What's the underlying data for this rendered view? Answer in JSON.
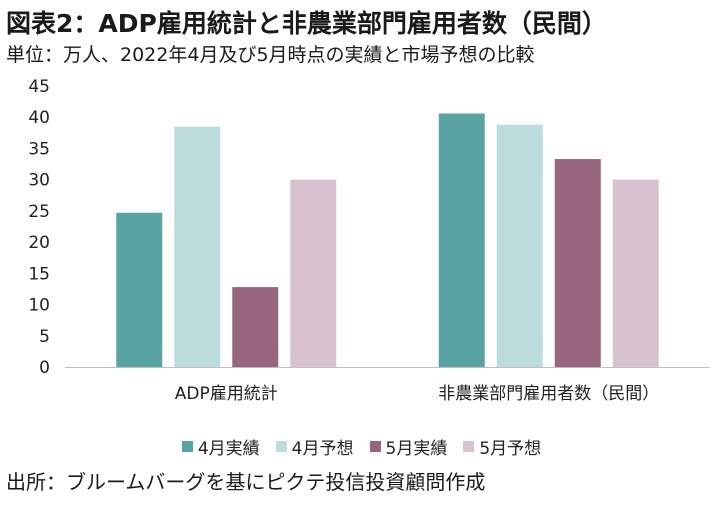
{
  "header": {
    "title": "図表2：ADP雇用統計と非農業部門雇用者数（民間）",
    "subtitle": "単位：万人、2022年4月及び5月時点の実績と市場予想の比較"
  },
  "footer": {
    "source": "出所：ブルームバーグを基にピクテ投信投資顧問作成"
  },
  "chart_data": {
    "type": "bar",
    "title": "図表2：ADP雇用統計と非農業部門雇用者数（民間）",
    "subtitle": "単位：万人、2022年4月及び5月時点の実績と市場予想の比較",
    "xlabel": "",
    "ylabel": "",
    "categories": [
      "ADP雇用統計",
      "非農業部門雇用者数（民間）"
    ],
    "series": [
      {
        "name": "4月実績",
        "values": [
          24.7,
          40.6
        ],
        "color": "#5aa3a5"
      },
      {
        "name": "4月予想",
        "values": [
          38.5,
          38.8
        ],
        "color": "#bddcdd"
      },
      {
        "name": "5月実績",
        "values": [
          12.8,
          33.3
        ],
        "color": "#98657f"
      },
      {
        "name": "5月予想",
        "values": [
          30.0,
          30.0
        ],
        "color": "#d8c2cf"
      }
    ],
    "ylim": [
      0,
      45
    ],
    "yticks": [
      "0",
      "5",
      "10",
      "15",
      "20",
      "25",
      "30",
      "35",
      "40",
      "45"
    ],
    "grid": false,
    "legend": "bottom"
  }
}
